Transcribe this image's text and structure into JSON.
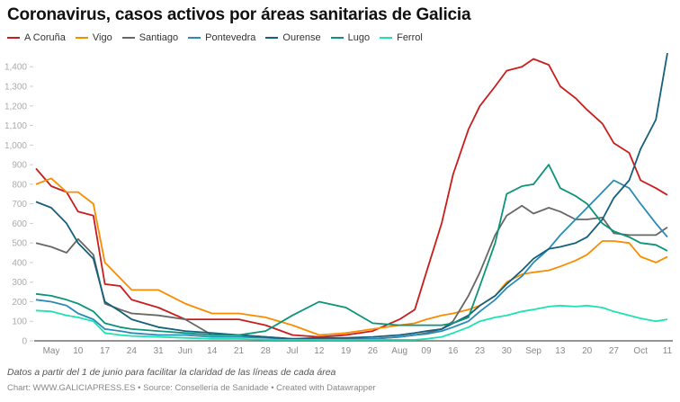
{
  "chart_data": {
    "type": "line",
    "title": "Coronavirus, casos activos por áreas sanitarias de Galicia",
    "note": "Datos a partir del 1 de junio para facilitar la claridad de las líneas de cada área",
    "source": "Chart: WWW.GALICIAPRESS.ES • Source: Consellería de Sanidade • Created with Datawrapper",
    "legend_position": "top-left",
    "grid": false,
    "ylim": [
      0,
      1470
    ],
    "yticks": [
      0,
      100,
      200,
      300,
      400,
      500,
      600,
      700,
      800,
      900,
      1000,
      1100,
      1200,
      1300,
      1400
    ],
    "ytick_labels": [
      "0",
      "100",
      "200",
      "300",
      "400",
      "500",
      "600",
      "700",
      "800",
      "900",
      "1,000",
      "1,100",
      "1,200",
      "1,300",
      "1,400"
    ],
    "xlim": [
      "2020-04-29",
      "2020-10-11"
    ],
    "xticks": [
      "2020-05-03",
      "2020-05-10",
      "2020-05-17",
      "2020-05-24",
      "2020-05-31",
      "2020-06-07",
      "2020-06-14",
      "2020-06-21",
      "2020-06-28",
      "2020-07-05",
      "2020-07-12",
      "2020-07-19",
      "2020-07-26",
      "2020-08-02",
      "2020-08-09",
      "2020-08-16",
      "2020-08-23",
      "2020-08-30",
      "2020-09-06",
      "2020-09-13",
      "2020-09-20",
      "2020-09-27",
      "2020-10-04",
      "2020-10-11"
    ],
    "xtick_labels": [
      "May",
      "10",
      "17",
      "24",
      "31",
      "Jun",
      "14",
      "21",
      "28",
      "Jul",
      "12",
      "19",
      "26",
      "Aug",
      "09",
      "16",
      "23",
      "30",
      "Sep",
      "13",
      "20",
      "27",
      "Oct",
      "11"
    ],
    "x": [
      "2020-04-29",
      "2020-05-03",
      "2020-05-07",
      "2020-05-10",
      "2020-05-14",
      "2020-05-17",
      "2020-05-21",
      "2020-05-24",
      "2020-05-31",
      "2020-06-07",
      "2020-06-14",
      "2020-06-21",
      "2020-06-28",
      "2020-07-05",
      "2020-07-12",
      "2020-07-19",
      "2020-07-26",
      "2020-08-02",
      "2020-08-06",
      "2020-08-09",
      "2020-08-13",
      "2020-08-16",
      "2020-08-20",
      "2020-08-23",
      "2020-08-27",
      "2020-08-30",
      "2020-09-03",
      "2020-09-06",
      "2020-09-10",
      "2020-09-13",
      "2020-09-17",
      "2020-09-20",
      "2020-09-24",
      "2020-09-27",
      "2020-10-01",
      "2020-10-04",
      "2020-10-08",
      "2020-10-11"
    ],
    "series": [
      {
        "name": "A Coruña",
        "color": "#c71e1d",
        "values": [
          880,
          790,
          760,
          660,
          640,
          290,
          280,
          210,
          170,
          110,
          110,
          110,
          80,
          30,
          20,
          30,
          50,
          110,
          160,
          350,
          600,
          850,
          1080,
          1200,
          1300,
          1380,
          1400,
          1440,
          1410,
          1300,
          1240,
          1180,
          1110,
          1010,
          960,
          820,
          780,
          745
        ]
      },
      {
        "name": "Vigo",
        "color": "#fa8c00",
        "values": [
          800,
          830,
          760,
          760,
          700,
          400,
          320,
          260,
          260,
          190,
          140,
          140,
          120,
          80,
          30,
          40,
          60,
          80,
          90,
          110,
          130,
          140,
          160,
          180,
          230,
          300,
          340,
          350,
          360,
          380,
          410,
          440,
          510,
          510,
          500,
          430,
          400,
          430
        ]
      },
      {
        "name": "Santiago",
        "color": "#676767",
        "values": [
          500,
          480,
          450,
          520,
          440,
          190,
          160,
          140,
          130,
          110,
          30,
          30,
          20,
          10,
          10,
          10,
          10,
          20,
          30,
          40,
          60,
          100,
          230,
          350,
          540,
          640,
          690,
          650,
          680,
          660,
          620,
          620,
          630,
          550,
          540,
          540,
          540,
          580
        ]
      },
      {
        "name": "Pontevedra",
        "color": "#2a8ab8",
        "values": [
          210,
          200,
          180,
          140,
          110,
          60,
          50,
          40,
          30,
          30,
          20,
          20,
          15,
          10,
          5,
          5,
          10,
          20,
          30,
          35,
          50,
          70,
          100,
          150,
          210,
          270,
          330,
          400,
          470,
          540,
          620,
          680,
          760,
          820,
          780,
          700,
          600,
          530
        ]
      },
      {
        "name": "Ourense",
        "color": "#15607a",
        "values": [
          710,
          680,
          600,
          500,
          420,
          200,
          150,
          110,
          70,
          50,
          40,
          30,
          20,
          10,
          15,
          15,
          20,
          30,
          40,
          50,
          60,
          90,
          130,
          180,
          230,
          290,
          360,
          420,
          470,
          480,
          500,
          530,
          620,
          730,
          820,
          980,
          1130,
          1470
        ]
      },
      {
        "name": "Lugo",
        "color": "#0b9478",
        "values": [
          240,
          230,
          210,
          190,
          150,
          90,
          70,
          60,
          50,
          40,
          30,
          30,
          50,
          130,
          200,
          170,
          90,
          80,
          80,
          80,
          80,
          90,
          120,
          280,
          500,
          750,
          790,
          800,
          900,
          780,
          740,
          700,
          600,
          560,
          530,
          500,
          490,
          460
        ]
      },
      {
        "name": "Ferrol",
        "color": "#1ee2b0",
        "values": [
          155,
          150,
          130,
          120,
          100,
          40,
          30,
          25,
          20,
          15,
          10,
          10,
          5,
          5,
          5,
          5,
          5,
          5,
          5,
          10,
          20,
          40,
          70,
          100,
          120,
          130,
          150,
          160,
          175,
          180,
          175,
          180,
          170,
          150,
          130,
          115,
          100,
          110
        ]
      }
    ]
  }
}
